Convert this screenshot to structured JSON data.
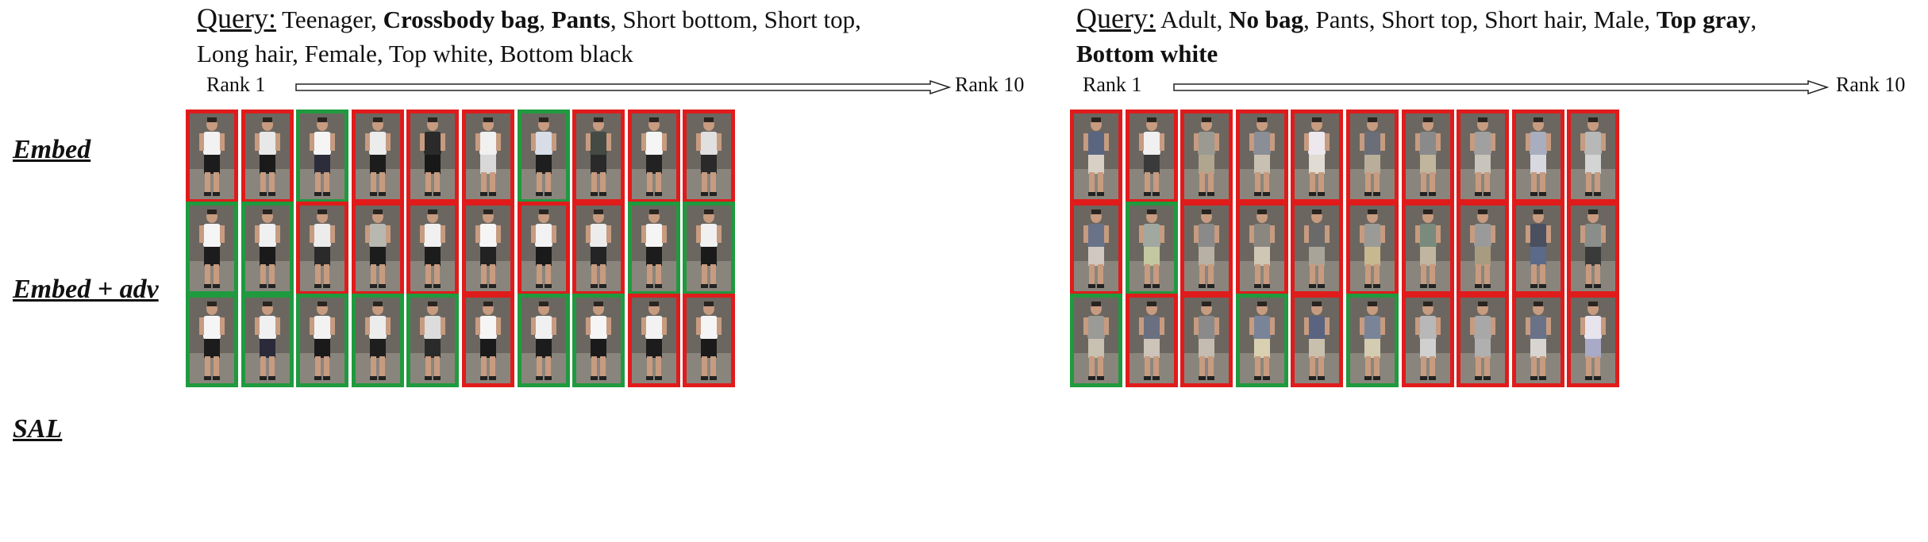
{
  "row_labels": [
    "Embed",
    "Embed + adv",
    "SAL"
  ],
  "colors": {
    "match": "#1f9a3e",
    "mismatch": "#e01b1b"
  },
  "panels": [
    {
      "query_label": "Query:",
      "query_line1": [
        {
          "text": " Teenager, ",
          "bold": false
        },
        {
          "text": "Crossbody bag",
          "bold": true
        },
        {
          "text": ", ",
          "bold": false
        },
        {
          "text": "Pants",
          "bold": true
        },
        {
          "text": ", Short bottom, Short top,",
          "bold": false
        }
      ],
      "query_line2": [
        {
          "text": "Long hair, Female, Top white, Bottom black",
          "bold": false
        }
      ],
      "rank_start": "Rank 1",
      "rank_end": "Rank 10",
      "rows": [
        {
          "matches": [
            false,
            false,
            true,
            false,
            false,
            false,
            true,
            false,
            false,
            false
          ],
          "tops": [
            "#f2f2f2",
            "#e8e8e8",
            "#f5f5f5",
            "#ececec",
            "#2a2a2a",
            "#f0f0f0",
            "#d8dde8",
            "#444a44",
            "#f5f5f5",
            "#e0e0e0"
          ],
          "bottoms": [
            "#1c1c1c",
            "#1a1a1a",
            "#2c2c3a",
            "#1c1c1c",
            "#181818",
            "#d8d8d8",
            "#1e1e1e",
            "#2a2a2a",
            "#222222",
            "#2a2a2a"
          ]
        },
        {
          "matches": [
            true,
            true,
            false,
            false,
            false,
            false,
            false,
            false,
            true,
            true
          ],
          "tops": [
            "#f5f5f5",
            "#f0f0f0",
            "#ececec",
            "#b8b8b0",
            "#f0f0f0",
            "#f5f5f5",
            "#f2f2f2",
            "#ececec",
            "#f5f5f5",
            "#f0f0f0"
          ],
          "bottoms": [
            "#1c1c1c",
            "#1a1a1a",
            "#2a2a2a",
            "#1c1c1c",
            "#1c1c1c",
            "#222222",
            "#1a1a1a",
            "#242424",
            "#1c1c1c",
            "#1a1a1a"
          ]
        },
        {
          "matches": [
            true,
            true,
            true,
            true,
            true,
            false,
            true,
            true,
            false,
            false
          ],
          "tops": [
            "#f5f5f5",
            "#f0f0f0",
            "#f2f2f2",
            "#ececec",
            "#dcdcdc",
            "#f5f5f5",
            "#f0f0f0",
            "#f5f5f5",
            "#f2f2f2",
            "#f5f5f5"
          ],
          "bottoms": [
            "#1c1c1c",
            "#2a2a3a",
            "#1a1a1a",
            "#1e1e1e",
            "#2a2a2a",
            "#1a1a1a",
            "#1c1c1c",
            "#1a1a1a",
            "#1c1c1c",
            "#1a1a1a"
          ]
        }
      ]
    },
    {
      "query_label": "Query:",
      "query_line1": [
        {
          "text": " Adult, ",
          "bold": false
        },
        {
          "text": "No bag",
          "bold": true
        },
        {
          "text": ", Pants, Short top, Short hair, Male, ",
          "bold": false
        },
        {
          "text": "Top gray",
          "bold": true
        },
        {
          "text": ",",
          "bold": false
        }
      ],
      "query_line2": [
        {
          "text": "Bottom white",
          "bold": true
        }
      ],
      "rank_start": "Rank 1",
      "rank_end": "Rank 10",
      "rows": [
        {
          "matches": [
            false,
            false,
            false,
            false,
            false,
            false,
            false,
            false,
            false,
            false
          ],
          "tops": [
            "#5a6680",
            "#f0f0f0",
            "#9a9a92",
            "#8a8e96",
            "#ece8ee",
            "#6a6e78",
            "#8a8a8a",
            "#a0a0a0",
            "#a8aec0",
            "#b8b8b8"
          ],
          "bottoms": [
            "#d8d0c4",
            "#3a3a3a",
            "#b0a690",
            "#c8c0b0",
            "#e0dcd4",
            "#b8ae9a",
            "#c0b69e",
            "#c8c4bc",
            "#d8d8e0",
            "#d4d4d4"
          ]
        },
        {
          "matches": [
            false,
            true,
            false,
            false,
            false,
            false,
            false,
            false,
            false,
            false
          ],
          "tops": [
            "#6a7288",
            "#a0a8a0",
            "#8a8a8a",
            "#8a8680",
            "#6a6a6a",
            "#9a9a96",
            "#7a8a7c",
            "#9a9a9a",
            "#4a5060",
            "#8a8e8a"
          ],
          "bottoms": [
            "#d0c8c0",
            "#c4c8a0",
            "#b8b0a4",
            "#d0c6b4",
            "#a8a498",
            "#c8b890",
            "#c0b6a0",
            "#a89c80",
            "#5a6a88",
            "#3a3a3a"
          ]
        },
        {
          "matches": [
            true,
            false,
            false,
            true,
            false,
            true,
            false,
            false,
            false,
            false
          ],
          "tops": [
            "#9a9a96",
            "#6a7080",
            "#8a8a8a",
            "#7a8498",
            "#5a6480",
            "#7a8498",
            "#b8b8b8",
            "#a8a8a8",
            "#6a7288",
            "#e8e4ee"
          ],
          "bottoms": [
            "#c8c0b0",
            "#ccc4b8",
            "#c4bcb0",
            "#d8d0b0",
            "#c8c0ac",
            "#d4ccb0",
            "#d0d0d0",
            "#b0b0b0",
            "#d8d4d0",
            "#a8aac8"
          ]
        }
      ]
    }
  ]
}
